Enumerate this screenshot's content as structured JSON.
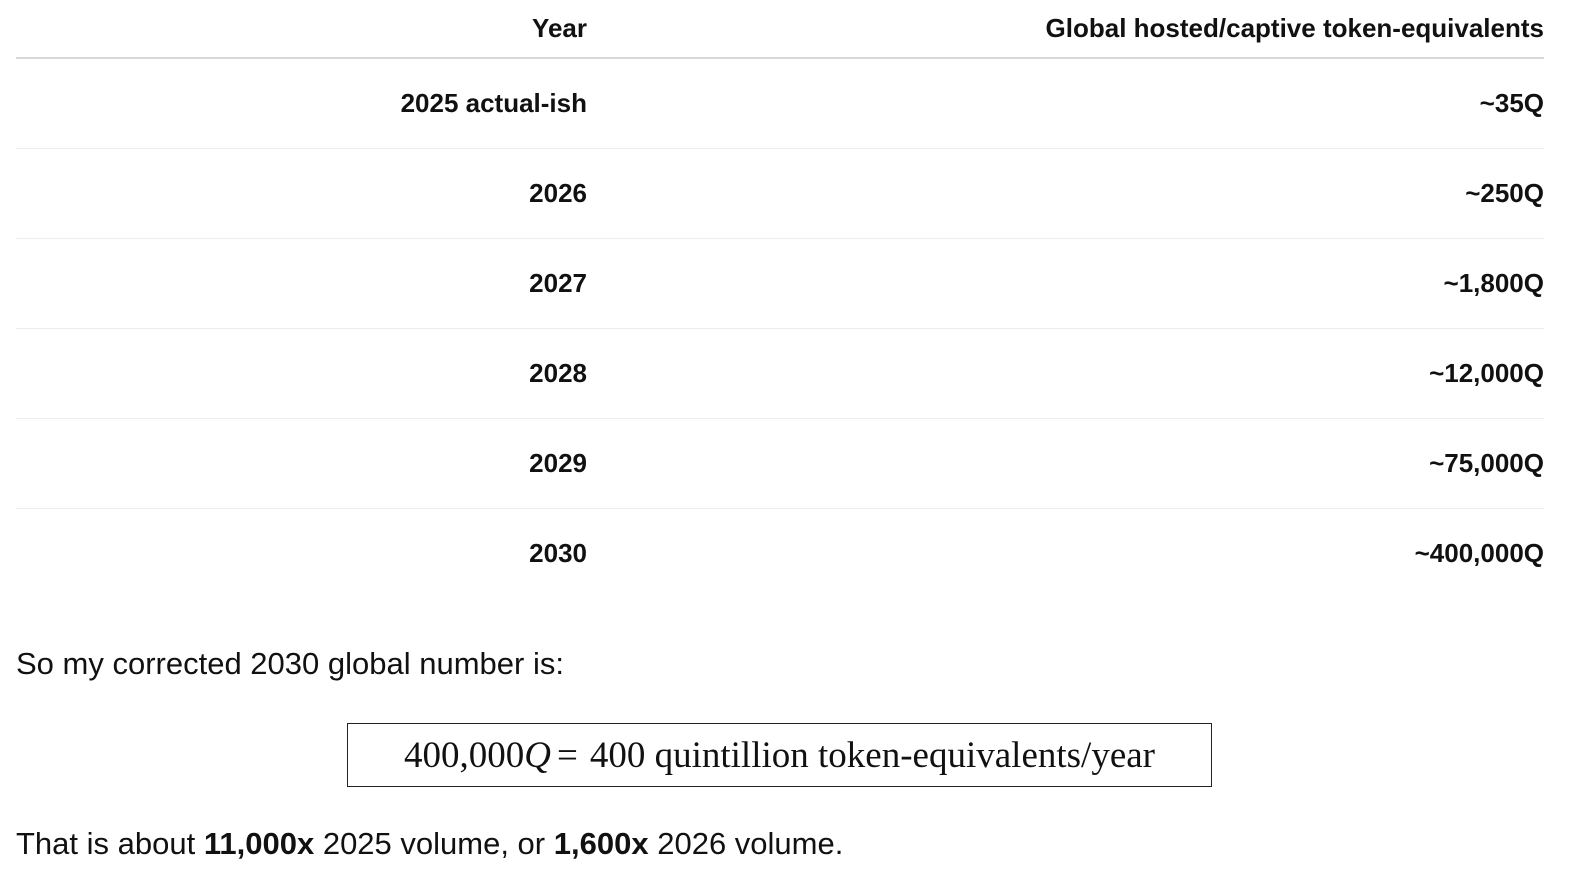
{
  "table": {
    "header": [
      "Year",
      "Global hosted/captive token-equivalents"
    ],
    "rows": [
      [
        "2025 actual-ish",
        "~35Q"
      ],
      [
        "2026",
        "~250Q"
      ],
      [
        "2027",
        "~1,800Q"
      ],
      [
        "2028",
        "~12,000Q"
      ],
      [
        "2029",
        "~75,000Q"
      ],
      [
        "2030",
        "~400,000Q"
      ]
    ]
  },
  "intro": "So my corrected 2030 global number is:",
  "formula": {
    "lhs_number": "400,000",
    "lhs_symbol": "Q",
    "operator": "=",
    "rhs": "400 quintillion token-equivalents/year"
  },
  "conclusion": [
    "That is about",
    "11,000x",
    "2025 volume, or",
    "1,600x",
    "2026 volume."
  ]
}
